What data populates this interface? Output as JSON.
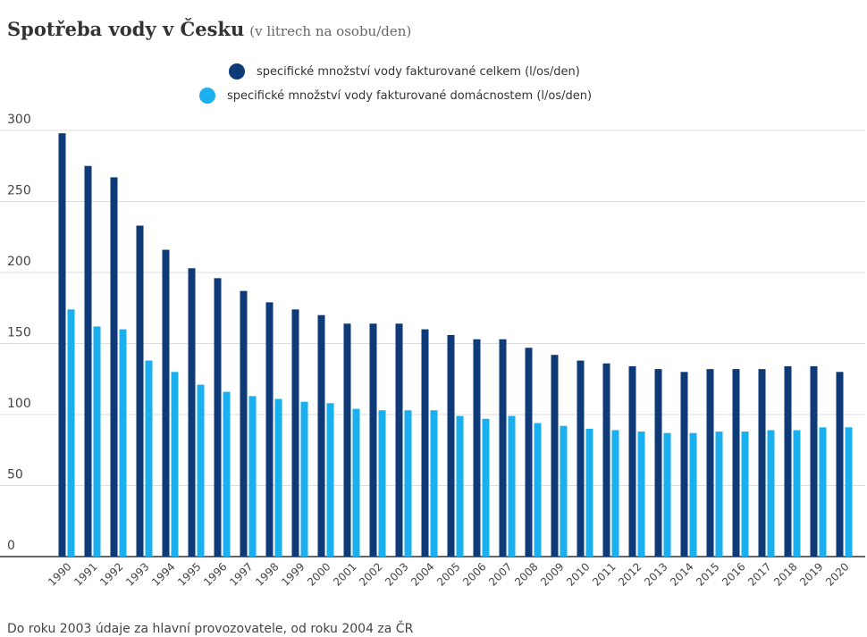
{
  "chart_data": {
    "type": "bar",
    "title": "Spotřeba vody v Česku",
    "subtitle": "(v litrech na osobu/den)",
    "note": "Do roku 2003 údaje za hlavní provozovatele, od roku 2004 za ČR",
    "categories": [
      "1990",
      "1991",
      "1992",
      "1993",
      "1994",
      "1995",
      "1996",
      "1997",
      "1998",
      "1999",
      "2000",
      "2001",
      "2002",
      "2003",
      "2004",
      "2005",
      "2006",
      "2007",
      "2008",
      "2009",
      "2010",
      "2011",
      "2012",
      "2013",
      "2014",
      "2015",
      "2016",
      "2017",
      "2018",
      "2019",
      "2020"
    ],
    "series": [
      {
        "name": "specifické množství vody fakturované celkem (l/os/den)",
        "color": "#0e3a78",
        "values": [
          298,
          275,
          267,
          233,
          216,
          203,
          196,
          187,
          179,
          174,
          170,
          164,
          164,
          164,
          160,
          156,
          153,
          153,
          147,
          142,
          138,
          136,
          134,
          132,
          130,
          132,
          132,
          132,
          134,
          134,
          130
        ]
      },
      {
        "name": "specifické množství vody fakturované domácnostem (l/os/den)",
        "color": "#1ab0ef",
        "values": [
          174,
          162,
          160,
          138,
          130,
          121,
          116,
          113,
          111,
          109,
          108,
          104,
          103,
          103,
          103,
          99,
          97,
          99,
          94,
          92,
          90,
          89,
          88,
          87,
          87,
          88,
          88,
          89,
          89,
          91,
          91
        ]
      }
    ],
    "ylim": [
      0,
      300
    ],
    "yticks": [
      0,
      50,
      100,
      150,
      200,
      250,
      300
    ],
    "grid": true
  }
}
